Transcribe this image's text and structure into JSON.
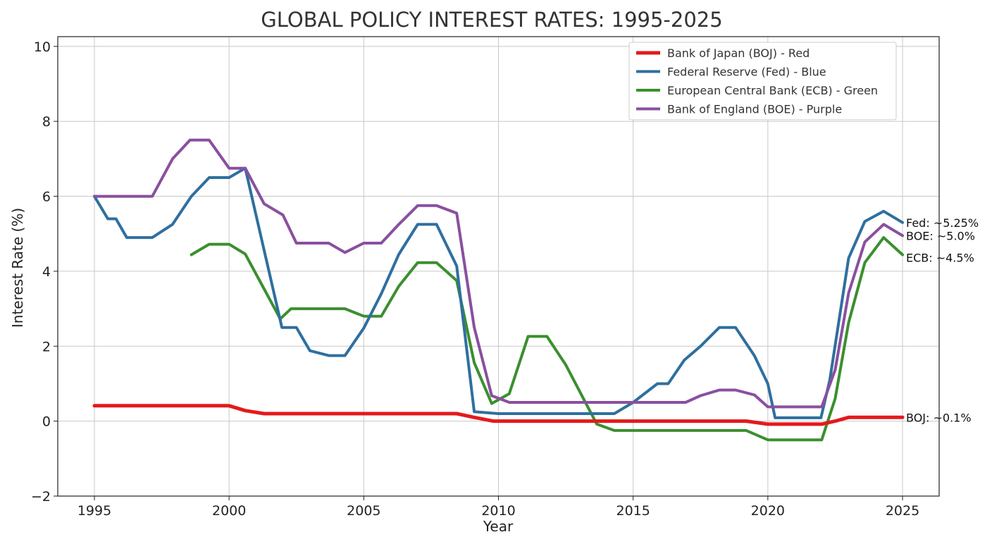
{
  "chart_data": {
    "type": "line",
    "title": "GLOBAL POLICY INTEREST RATES: 1995-2025",
    "xlabel": "Year",
    "ylabel": "Interest Rate (%)",
    "xlim": [
      1993.64,
      2026.36
    ],
    "ylim": [
      -2,
      10.26
    ],
    "xticks": [
      1995,
      2000,
      2005,
      2010,
      2015,
      2020,
      2025
    ],
    "yticks": [
      -2,
      0,
      2,
      4,
      6,
      8,
      10
    ],
    "ytick_labels": [
      "−2",
      "0",
      "2",
      "4",
      "6",
      "8",
      "10"
    ],
    "grid": true,
    "legend_position": "top-right",
    "series": [
      {
        "name": "Bank of Japan (BOJ) - Red",
        "color": "#e31a1c",
        "annotation": "BOJ: ~0.1%",
        "points": [
          [
            1995,
            0.41
          ],
          [
            2000,
            0.41
          ],
          [
            2000.6,
            0.28
          ],
          [
            2001.3,
            0.2
          ],
          [
            2008.45,
            0.2
          ],
          [
            2009.1,
            0.1
          ],
          [
            2009.8,
            0
          ],
          [
            2019.2,
            0
          ],
          [
            2020,
            -0.08
          ],
          [
            2022,
            -0.08
          ],
          [
            2022.5,
            0
          ],
          [
            2023,
            0.1
          ],
          [
            2025,
            0.1
          ]
        ]
      },
      {
        "name": "Federal Reserve (Fed) - Blue",
        "color": "#2f6f9f",
        "annotation": "Fed: ~5.25%",
        "points": [
          [
            1995,
            6.0
          ],
          [
            1995.5,
            5.4
          ],
          [
            1995.8,
            5.4
          ],
          [
            1996.2,
            4.9
          ],
          [
            1997.15,
            4.9
          ],
          [
            1997.9,
            5.25
          ],
          [
            1998.6,
            6.0
          ],
          [
            1999.26,
            6.5
          ],
          [
            2000,
            6.5
          ],
          [
            2000.6,
            6.75
          ],
          [
            2001.96,
            2.5
          ],
          [
            2002.5,
            2.5
          ],
          [
            2003,
            1.88
          ],
          [
            2003.7,
            1.75
          ],
          [
            2004.3,
            1.75
          ],
          [
            2005,
            2.48
          ],
          [
            2005.65,
            3.4
          ],
          [
            2006.3,
            4.45
          ],
          [
            2007,
            5.25
          ],
          [
            2007.7,
            5.25
          ],
          [
            2008.45,
            4.14
          ],
          [
            2009.1,
            0.25
          ],
          [
            2010,
            0.2
          ],
          [
            2014.3,
            0.2
          ],
          [
            2015,
            0.5
          ],
          [
            2015.9,
            1.0
          ],
          [
            2016.3,
            1.0
          ],
          [
            2016.9,
            1.63
          ],
          [
            2017.5,
            2.0
          ],
          [
            2018.2,
            2.5
          ],
          [
            2018.8,
            2.5
          ],
          [
            2019.5,
            1.75
          ],
          [
            2020,
            1.0
          ],
          [
            2020.27,
            0.09
          ],
          [
            2021.97,
            0.09
          ],
          [
            2022.3,
            1.1
          ],
          [
            2023,
            4.35
          ],
          [
            2023.6,
            5.33
          ],
          [
            2024.3,
            5.6
          ],
          [
            2025,
            5.3
          ]
        ]
      },
      {
        "name": "European Central Bank (ECB) - Green",
        "color": "#3b8f2f",
        "annotation": "ECB: ~4.5%",
        "points": [
          [
            1998.6,
            4.44
          ],
          [
            1999.26,
            4.72
          ],
          [
            2000,
            4.72
          ],
          [
            2000.6,
            4.46
          ],
          [
            2001.9,
            2.73
          ],
          [
            2002.3,
            3.0
          ],
          [
            2004.3,
            3.0
          ],
          [
            2005,
            2.8
          ],
          [
            2005.65,
            2.8
          ],
          [
            2006.3,
            3.6
          ],
          [
            2007,
            4.23
          ],
          [
            2007.7,
            4.23
          ],
          [
            2008.45,
            3.75
          ],
          [
            2009.1,
            1.56
          ],
          [
            2009.75,
            0.47
          ],
          [
            2010.4,
            0.73
          ],
          [
            2011.1,
            2.26
          ],
          [
            2011.8,
            2.26
          ],
          [
            2012.5,
            1.5
          ],
          [
            2013.65,
            -0.08
          ],
          [
            2014.3,
            -0.25
          ],
          [
            2019.2,
            -0.25
          ],
          [
            2020,
            -0.5
          ],
          [
            2022,
            -0.5
          ],
          [
            2022.5,
            0.6
          ],
          [
            2023,
            2.63
          ],
          [
            2023.6,
            4.23
          ],
          [
            2024.3,
            4.9
          ],
          [
            2025,
            4.44
          ]
        ]
      },
      {
        "name": "Bank of England (BOE) - Purple",
        "color": "#8a4f9f",
        "annotation": "BOE: ~5.0%",
        "points": [
          [
            1995,
            6.0
          ],
          [
            1997.15,
            6.0
          ],
          [
            1997.9,
            7.0
          ],
          [
            1998.55,
            7.5
          ],
          [
            1999.26,
            7.5
          ],
          [
            2000,
            6.75
          ],
          [
            2000.6,
            6.75
          ],
          [
            2001.3,
            5.8
          ],
          [
            2002,
            5.5
          ],
          [
            2002.5,
            4.75
          ],
          [
            2003.7,
            4.75
          ],
          [
            2004.3,
            4.5
          ],
          [
            2005,
            4.75
          ],
          [
            2005.65,
            4.75
          ],
          [
            2006.3,
            5.25
          ],
          [
            2007,
            5.75
          ],
          [
            2007.7,
            5.75
          ],
          [
            2008.45,
            5.55
          ],
          [
            2009.1,
            2.5
          ],
          [
            2009.75,
            0.68
          ],
          [
            2010.4,
            0.5
          ],
          [
            2016.95,
            0.5
          ],
          [
            2017.5,
            0.68
          ],
          [
            2018.2,
            0.83
          ],
          [
            2018.8,
            0.83
          ],
          [
            2019.5,
            0.7
          ],
          [
            2020,
            0.38
          ],
          [
            2022,
            0.38
          ],
          [
            2022.5,
            1.37
          ],
          [
            2023,
            3.42
          ],
          [
            2023.6,
            4.78
          ],
          [
            2024.3,
            5.25
          ],
          [
            2025,
            4.95
          ]
        ]
      }
    ]
  }
}
